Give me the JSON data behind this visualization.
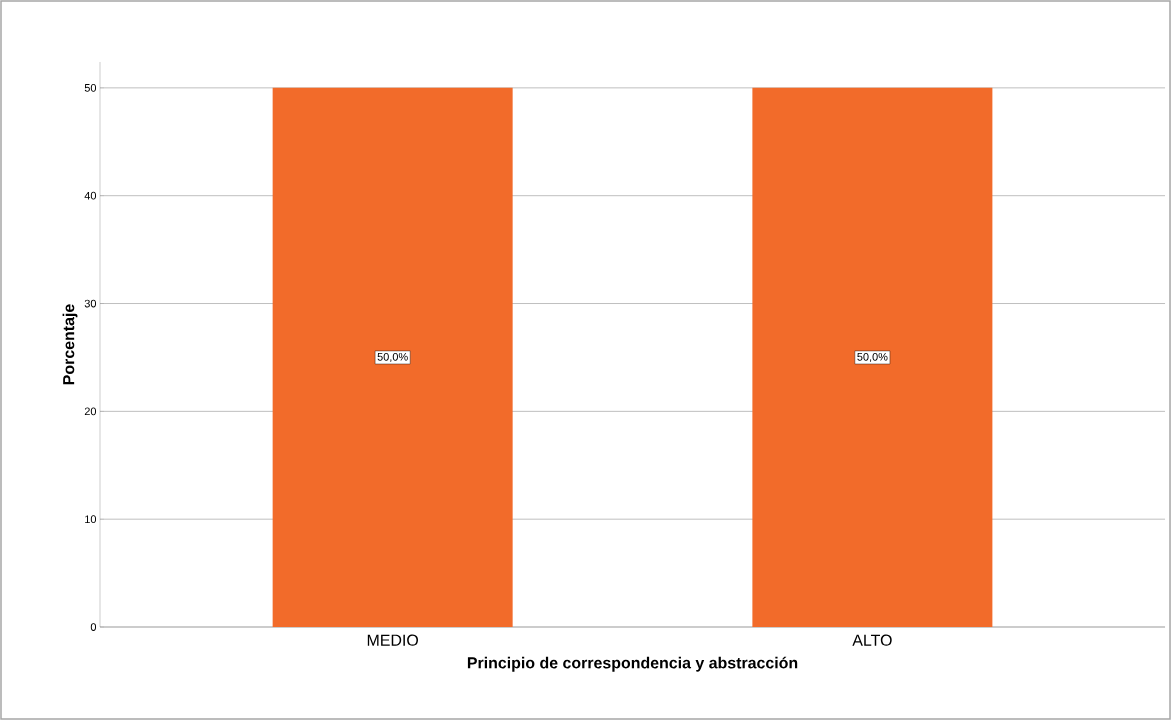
{
  "chart_data": {
    "type": "bar",
    "xlabel": "Principio de correspondencia y abstracción",
    "ylabel": "Porcentaje",
    "categories": [
      "MEDIO",
      "ALTO"
    ],
    "values": [
      50,
      50
    ],
    "value_labels": [
      "50,0%",
      "50,0%"
    ],
    "color": "#f26b2a",
    "ylim": [
      0,
      52.4
    ],
    "yticks": [
      0,
      10,
      20,
      30,
      40,
      50
    ],
    "grid": "y"
  }
}
